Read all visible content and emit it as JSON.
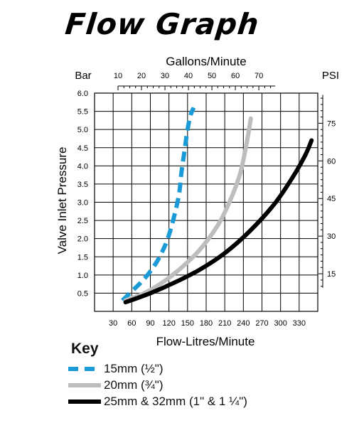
{
  "title": "Flow Graph",
  "chart_data": {
    "type": "line",
    "xlabel": "Flow-Litres/Minute",
    "ylabel": "Valve Inlet Pressure",
    "top_axis_label": "Gallons/Minute",
    "left_unit": "Bar",
    "right_unit": "PSI",
    "xlim": [
      0,
      360
    ],
    "ylim": [
      0,
      6.0
    ],
    "x_ticks": [
      30,
      60,
      90,
      120,
      150,
      180,
      210,
      240,
      270,
      300,
      330
    ],
    "x_tick_labels": [
      "30",
      "60",
      "90",
      "120",
      "150",
      "180",
      "210",
      "240",
      "270",
      "300",
      "330"
    ],
    "y_ticks": [
      0.5,
      1.0,
      1.5,
      2.0,
      2.5,
      3.0,
      3.5,
      4.0,
      4.5,
      5.0,
      5.5,
      6.0
    ],
    "y_tick_labels": [
      "0.5",
      "1.0",
      "1.5",
      "2.0",
      "2.5",
      "3.0",
      "3.5",
      "4.0",
      "4.5",
      "5.0",
      "5.5",
      "6.0"
    ],
    "top_ticks_gpm": [
      10,
      20,
      30,
      40,
      50,
      60,
      70
    ],
    "top_tick_labels": [
      "10",
      "20",
      "30",
      "40",
      "50",
      "60",
      "70"
    ],
    "right_ticks_psi": [
      15,
      30,
      45,
      60,
      75
    ],
    "right_tick_labels": [
      "15",
      "30",
      "45",
      "60",
      "75"
    ],
    "grid": true,
    "series": [
      {
        "name": "15mm (½\")",
        "key_label": "15mm (½\")",
        "color": "#1a9ad6",
        "style": "dashed",
        "x": [
          45,
          60,
          75,
          90,
          105,
          120,
          135,
          140,
          145,
          150,
          155,
          160
        ],
        "y": [
          0.3,
          0.55,
          0.8,
          1.1,
          1.5,
          2.1,
          3.1,
          3.8,
          4.4,
          5.0,
          5.4,
          5.6
        ]
      },
      {
        "name": "20mm (¾\")",
        "key_label": "20mm (¾\")",
        "color": "#bdbdbd",
        "style": "solid",
        "x": [
          50,
          80,
          110,
          140,
          170,
          200,
          220,
          235,
          245,
          252
        ],
        "y": [
          0.3,
          0.5,
          0.8,
          1.2,
          1.7,
          2.4,
          3.1,
          3.8,
          4.6,
          5.3
        ]
      },
      {
        "name": "25mm & 32mm (1\" & 1 ¼\")",
        "key_label": "25mm & 32mm (1\" & 1 ¼\")",
        "color": "#000000",
        "style": "solid",
        "x": [
          50,
          90,
          130,
          170,
          210,
          250,
          290,
          320,
          340,
          350
        ],
        "y": [
          0.25,
          0.5,
          0.8,
          1.15,
          1.6,
          2.2,
          2.95,
          3.7,
          4.3,
          4.7
        ]
      }
    ],
    "key_title": "Key"
  }
}
